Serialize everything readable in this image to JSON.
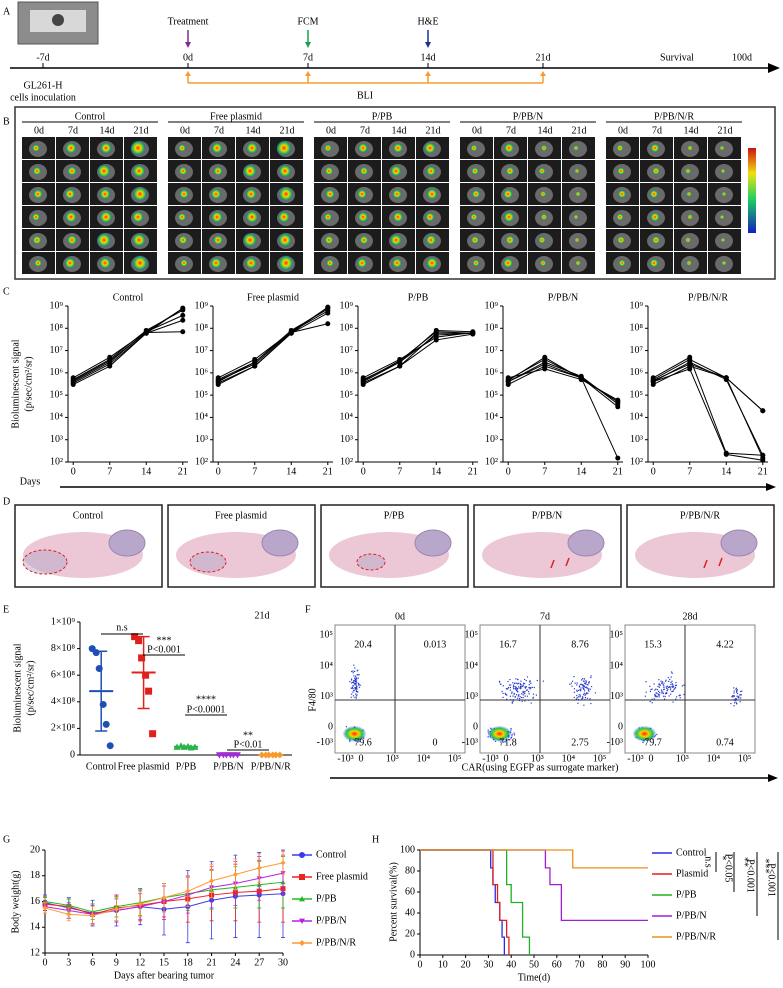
{
  "panel_letters": [
    "A",
    "B",
    "C",
    "D",
    "E",
    "F",
    "G",
    "H"
  ],
  "timeline": {
    "days": [
      "-7d",
      "0d",
      "7d",
      "14d",
      "21d"
    ],
    "end_day": "100d",
    "events": [
      "Treatment",
      "FCM",
      "H&E"
    ],
    "survival": "Survival",
    "bli": "BLI",
    "inoculation": [
      "GL261-H",
      "cells inoculation"
    ]
  },
  "bli_images": {
    "groups": [
      "Control",
      "Free plasmid",
      "P/PB",
      "P/PB/N",
      "P/PB/N/R"
    ],
    "days": [
      "0d",
      "7d",
      "14d",
      "21d"
    ]
  },
  "histology": {
    "groups": [
      "Control",
      "Free plasmid",
      "P/PB",
      "P/PB/N",
      "P/PB/N/R"
    ]
  },
  "flow": {
    "timepoints": [
      "0d",
      "7d",
      "28d"
    ],
    "quadrants": [
      [
        20.4,
        0.013,
        79.6,
        0
      ],
      [
        16.7,
        8.76,
        71.8,
        2.75
      ],
      [
        15.3,
        4.22,
        79.7,
        0.74
      ]
    ],
    "ticks": [
      "10⁵",
      "10⁴",
      "10³",
      "0",
      "-10³"
    ],
    "y_label": "F4/80",
    "x_label": "CAR(using EGFP as surrogate marker)"
  },
  "chart_data": [
    {
      "type": "line",
      "title": "Control",
      "log_scale": true,
      "y_label": [
        "Bioluminescent signal",
        "(p/sec/cm²/sr)"
      ],
      "x_label": "Days",
      "x": [
        0,
        7,
        14,
        21
      ],
      "xlim": [
        -1,
        22
      ],
      "xticks": [
        0,
        7,
        14,
        21
      ],
      "ylim": [
        100,
        1000000000.0
      ],
      "yticks": [
        {
          "value": 100,
          "label": "10²"
        },
        {
          "value": 1000,
          "label": "10³"
        },
        {
          "value": 10000,
          "label": "10⁴"
        },
        {
          "value": 100000,
          "label": "10⁵"
        },
        {
          "value": 1000000,
          "label": "10⁶"
        },
        {
          "value": 10000000,
          "label": "10⁷"
        },
        {
          "value": 100000000,
          "label": "10⁸"
        },
        {
          "value": 1000000000,
          "label": "10⁹"
        }
      ],
      "color": "#000000",
      "series": [
        {
          "values": [
            300000.0,
            2000000.0,
            60000000.0,
            800000000.0
          ]
        },
        {
          "values": [
            400000.0,
            3000000.0,
            70000000.0,
            770000000.0
          ]
        },
        {
          "values": [
            500000.0,
            4000000.0,
            80000000.0,
            650000000.0
          ]
        },
        {
          "values": [
            600000.0,
            5000000.0,
            70000000.0,
            380000000.0
          ]
        },
        {
          "values": [
            350000.0,
            2500000.0,
            60000000.0,
            230000000.0
          ]
        },
        {
          "values": [
            450000.0,
            3500000.0,
            65000000.0,
            70000000.0
          ]
        }
      ]
    },
    {
      "type": "line",
      "title": "Free plasmid",
      "log_scale": true,
      "x": [
        0,
        7,
        14,
        21
      ],
      "xlim": [
        -1,
        22
      ],
      "xticks": [
        0,
        7,
        14,
        21
      ],
      "ylim": [
        100,
        1000000000.0
      ],
      "yticks": [
        {
          "value": 100,
          "label": "10²"
        },
        {
          "value": 1000,
          "label": "10³"
        },
        {
          "value": 10000,
          "label": "10⁴"
        },
        {
          "value": 100000,
          "label": "10⁵"
        },
        {
          "value": 1000000,
          "label": "10⁶"
        },
        {
          "value": 10000000,
          "label": "10⁷"
        },
        {
          "value": 100000000,
          "label": "10⁸"
        },
        {
          "value": 1000000000,
          "label": "10⁹"
        }
      ],
      "color": "#000000",
      "series": [
        {
          "values": [
            300000.0,
            2000000.0,
            60000000.0,
            890000000.0
          ]
        },
        {
          "values": [
            400000.0,
            3000000.0,
            70000000.0,
            860000000.0
          ]
        },
        {
          "values": [
            500000.0,
            3000000.0,
            80000000.0,
            730000000.0
          ]
        },
        {
          "values": [
            600000.0,
            4000000.0,
            70000000.0,
            600000000.0
          ]
        },
        {
          "values": [
            350000.0,
            2000000.0,
            60000000.0,
            480000000.0
          ]
        },
        {
          "values": [
            450000.0,
            2500000.0,
            65000000.0,
            160000000.0
          ]
        }
      ]
    },
    {
      "type": "line",
      "title": "P/PB",
      "log_scale": true,
      "x": [
        0,
        7,
        14,
        21
      ],
      "xlim": [
        -1,
        22
      ],
      "xticks": [
        0,
        7,
        14,
        21
      ],
      "ylim": [
        100,
        1000000000.0
      ],
      "yticks": [
        {
          "value": 100,
          "label": "10²"
        },
        {
          "value": 1000,
          "label": "10³"
        },
        {
          "value": 10000,
          "label": "10⁴"
        },
        {
          "value": 100000,
          "label": "10⁵"
        },
        {
          "value": 1000000,
          "label": "10⁶"
        },
        {
          "value": 10000000,
          "label": "10⁷"
        },
        {
          "value": 100000000,
          "label": "10⁸"
        },
        {
          "value": 1000000000,
          "label": "10⁹"
        }
      ],
      "color": "#000000",
      "series": [
        {
          "values": [
            300000.0,
            2000000.0,
            60000000.0,
            60000000.0
          ]
        },
        {
          "values": [
            400000.0,
            3000000.0,
            80000000.0,
            70000000.0
          ]
        },
        {
          "values": [
            500000.0,
            3000000.0,
            50000000.0,
            60000000.0
          ]
        },
        {
          "values": [
            600000.0,
            4000000.0,
            40000000.0,
            65000000.0
          ]
        },
        {
          "values": [
            350000.0,
            2000000.0,
            30000000.0,
            55000000.0
          ]
        },
        {
          "values": [
            450000.0,
            3500000.0,
            70000000.0,
            60000000.0
          ]
        }
      ]
    },
    {
      "type": "line",
      "title": "P/PB/N",
      "log_scale": true,
      "x": [
        0,
        7,
        14,
        21
      ],
      "xlim": [
        -1,
        22
      ],
      "xticks": [
        0,
        7,
        14,
        21
      ],
      "ylim": [
        100,
        1000000000.0
      ],
      "yticks": [
        {
          "value": 100,
          "label": "10²"
        },
        {
          "value": 1000,
          "label": "10³"
        },
        {
          "value": 10000,
          "label": "10⁴"
        },
        {
          "value": 100000,
          "label": "10⁵"
        },
        {
          "value": 1000000,
          "label": "10⁶"
        },
        {
          "value": 10000000,
          "label": "10⁷"
        },
        {
          "value": 100000000,
          "label": "10⁸"
        },
        {
          "value": 1000000000,
          "label": "10⁹"
        }
      ],
      "color": "#000000",
      "series": [
        {
          "values": [
            300000.0,
            2000000.0,
            600000.0,
            50000.0
          ]
        },
        {
          "values": [
            400000.0,
            3000000.0,
            700000.0,
            40000.0
          ]
        },
        {
          "values": [
            500000.0,
            4000000.0,
            600000.0,
            30000.0
          ]
        },
        {
          "values": [
            600000.0,
            1500000.0,
            500000.0,
            60000.0
          ]
        },
        {
          "values": [
            400000.0,
            2500000.0,
            600000.0,
            150
          ]
        },
        {
          "values": [
            450000.0,
            5000000.0,
            550000.0,
            50000.0
          ]
        }
      ]
    },
    {
      "type": "line",
      "title": "P/PB/N/R",
      "log_scale": true,
      "x": [
        0,
        7,
        14,
        21
      ],
      "xlim": [
        -1,
        22
      ],
      "xticks": [
        0,
        7,
        14,
        21
      ],
      "ylim": [
        100,
        1000000000.0
      ],
      "yticks": [
        {
          "value": 100,
          "label": "10²"
        },
        {
          "value": 1000,
          "label": "10³"
        },
        {
          "value": 10000,
          "label": "10⁴"
        },
        {
          "value": 100000,
          "label": "10⁵"
        },
        {
          "value": 1000000,
          "label": "10⁶"
        },
        {
          "value": 10000000,
          "label": "10⁷"
        },
        {
          "value": 100000000,
          "label": "10⁸"
        },
        {
          "value": 1000000000,
          "label": "10⁹"
        }
      ],
      "color": "#000000",
      "series": [
        {
          "values": [
            300000.0,
            2000000.0,
            600000.0,
            20000.0
          ]
        },
        {
          "values": [
            400000.0,
            3000000.0,
            500000.0,
            200
          ]
        },
        {
          "values": [
            500000.0,
            4000000.0,
            600000.0,
            150
          ]
        },
        {
          "values": [
            600000.0,
            5000000.0,
            250,
            200
          ]
        },
        {
          "values": [
            400000.0,
            1500000.0,
            220,
            120
          ]
        },
        {
          "values": [
            450000.0,
            2500000.0,
            600000.0,
            20000.0
          ]
        }
      ]
    },
    {
      "type": "strip",
      "subtitle": "21d",
      "y_label": [
        "Bioluminescent signal",
        "(p/sec/cm²/sr)"
      ],
      "categories": [
        "Control",
        "Free plasmid",
        "P/PB",
        "P/PB/N",
        "P/PB/N/R"
      ],
      "colors": [
        "#1f4fb5",
        "#e0201b",
        "#2db34a",
        "#a12fd0",
        "#f59a2c"
      ],
      "markers": [
        "circle",
        "square",
        "triangle",
        "triangle-down",
        "diamond"
      ],
      "values": [
        [
          800000000.0,
          770000000.0,
          650000000.0,
          380000000.0,
          230000000.0,
          70000000.0
        ],
        [
          890000000.0,
          860000000.0,
          730000000.0,
          600000000.0,
          480000000.0,
          160000000.0
        ],
        [
          60000000.0,
          70000000.0,
          60000000.0,
          65000000.0,
          55000000.0,
          60000000.0
        ],
        [
          50000.0,
          40000.0,
          30000.0,
          60000.0,
          150,
          50000.0
        ],
        [
          20000.0,
          200,
          150,
          200,
          120,
          20000.0
        ]
      ],
      "means": [
        480000000.0,
        620000000.0,
        62000000.0,
        38000.0,
        6800
      ],
      "sds": [
        300000000.0,
        270000000.0,
        5000000.0,
        22000.0,
        10000.0
      ],
      "ylim": [
        0,
        1000000000.0
      ],
      "yticks": [
        0,
        {
          "value": 200000000.0,
          "label": "2×10⁸"
        },
        {
          "value": 400000000.0,
          "label": "4×10⁸"
        },
        {
          "value": 600000000.0,
          "label": "6×10⁸"
        },
        {
          "value": 800000000.0,
          "label": "8×10⁸"
        },
        {
          "value": 1000000000.0,
          "label": "1×10⁹"
        }
      ],
      "annotations": [
        "n.s",
        "***",
        "P<0.001",
        "****",
        "P<0.0001",
        "**",
        "P<0.01"
      ]
    },
    {
      "type": "line",
      "x_label": "Days after bearing tumor",
      "y_label": "Body weight(g)",
      "x": [
        0,
        3,
        6,
        9,
        12,
        15,
        18,
        21,
        24,
        27,
        30
      ],
      "xlim": [
        0,
        30
      ],
      "xticks": [
        0,
        3,
        6,
        9,
        12,
        15,
        18,
        21,
        24,
        27,
        30
      ],
      "ylim": [
        12,
        20
      ],
      "yticks": [
        12,
        14,
        16,
        18,
        20
      ],
      "legend": "right",
      "series": [
        {
          "name": "Control",
          "color": "#3b3bea",
          "marker": "circle",
          "values": [
            15.9,
            15.5,
            15.1,
            15.3,
            15.6,
            15.4,
            15.6,
            16.1,
            16.4,
            16.5,
            16.6
          ],
          "errors": [
            0.6,
            0.8,
            1.0,
            1.2,
            1.4,
            2.0,
            2.8,
            3.0,
            3.2,
            3.3,
            3.4
          ]
        },
        {
          "name": "Free plasmid",
          "color": "#ee2222",
          "marker": "square",
          "values": [
            15.8,
            15.6,
            15.0,
            15.5,
            15.7,
            16.0,
            16.2,
            16.5,
            16.7,
            16.8,
            17.0
          ],
          "errors": [
            0.5,
            0.6,
            0.8,
            1.0,
            1.2,
            1.4,
            1.8,
            2.0,
            2.2,
            2.4,
            2.6
          ]
        },
        {
          "name": "P/PB",
          "color": "#22bb22",
          "marker": "triangle",
          "values": [
            16.0,
            15.7,
            15.2,
            15.6,
            15.9,
            16.3,
            16.6,
            16.9,
            17.1,
            17.3,
            17.5
          ],
          "errors": [
            0.4,
            0.5,
            0.6,
            0.8,
            1.0,
            1.1,
            1.3,
            1.5,
            1.6,
            1.8,
            2.0
          ]
        },
        {
          "name": "P/PB/N",
          "color": "#bb22dd",
          "marker": "triangle-down",
          "values": [
            15.6,
            15.3,
            15.0,
            15.3,
            15.6,
            16.0,
            16.5,
            17.1,
            17.4,
            17.8,
            18.2
          ],
          "errors": [
            0.5,
            0.6,
            0.7,
            0.9,
            1.0,
            1.2,
            1.4,
            1.6,
            1.7,
            1.7,
            1.7
          ]
        },
        {
          "name": "P/PB/N/R",
          "color": "#ff9933",
          "marker": "diamond",
          "values": [
            15.5,
            15.0,
            14.9,
            15.4,
            15.8,
            16.3,
            16.8,
            17.6,
            18.1,
            18.6,
            19.0
          ],
          "errors": [
            0.4,
            0.5,
            0.7,
            0.9,
            1.0,
            1.1,
            1.2,
            1.3,
            1.2,
            1.1,
            0.9
          ]
        }
      ]
    },
    {
      "type": "step",
      "x_label": "Time(d)",
      "y_label": "Percent survival(%)",
      "xlim": [
        0,
        100
      ],
      "xticks": [
        0,
        10,
        20,
        30,
        40,
        50,
        60,
        70,
        80,
        90,
        100
      ],
      "ylim": [
        0,
        100
      ],
      "yticks": [
        0,
        20,
        40,
        60,
        80,
        100
      ],
      "legend": "right",
      "series": [
        {
          "name": "Control",
          "color": "#2a2ae0",
          "x": [
            0,
            31,
            32,
            33,
            35,
            36,
            37
          ],
          "values": [
            100,
            83,
            67,
            50,
            33,
            17,
            0
          ]
        },
        {
          "name": "Plasmid",
          "color": "#e02020",
          "x": [
            0,
            32,
            34,
            35,
            38,
            39
          ],
          "values": [
            100,
            67,
            50,
            33,
            17,
            0
          ]
        },
        {
          "name": "P/PB",
          "color": "#22b022",
          "x": [
            0,
            38,
            40,
            45,
            48
          ],
          "values": [
            100,
            67,
            50,
            17,
            0
          ]
        },
        {
          "name": "P/PB/N",
          "color": "#a020d0",
          "x": [
            0,
            55,
            57,
            62,
            100
          ],
          "values": [
            100,
            83,
            67,
            33,
            33
          ]
        },
        {
          "name": "P/PB/N/R",
          "color": "#e8901c",
          "x": [
            0,
            67,
            100
          ],
          "values": [
            100,
            83,
            83
          ]
        }
      ],
      "annotations": [
        "n.s",
        "*",
        "P<0.05",
        "**",
        "P<0.001",
        "***",
        "P<0.001"
      ]
    }
  ]
}
